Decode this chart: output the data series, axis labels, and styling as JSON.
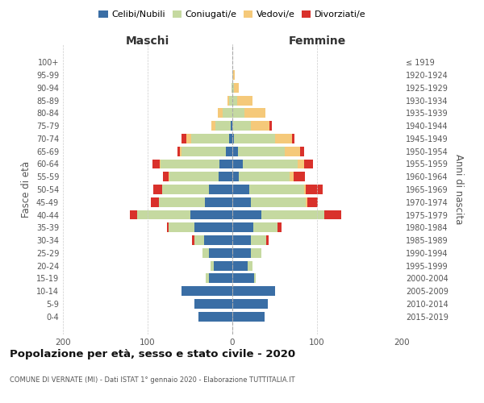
{
  "age_groups": [
    "0-4",
    "5-9",
    "10-14",
    "15-19",
    "20-24",
    "25-29",
    "30-34",
    "35-39",
    "40-44",
    "45-49",
    "50-54",
    "55-59",
    "60-64",
    "65-69",
    "70-74",
    "75-79",
    "80-84",
    "85-89",
    "90-94",
    "95-99",
    "100+"
  ],
  "birth_years": [
    "2015-2019",
    "2010-2014",
    "2005-2009",
    "2000-2004",
    "1995-1999",
    "1990-1994",
    "1985-1989",
    "1980-1984",
    "1975-1979",
    "1970-1974",
    "1965-1969",
    "1960-1964",
    "1955-1959",
    "1950-1954",
    "1945-1949",
    "1940-1944",
    "1935-1939",
    "1930-1934",
    "1925-1929",
    "1920-1924",
    "≤ 1919"
  ],
  "colors": {
    "celibe": "#3a6ea5",
    "coniugato": "#c5d9a0",
    "vedovo": "#f5c97a",
    "divorziato": "#d9312b"
  },
  "maschi": {
    "celibe": [
      40,
      45,
      60,
      28,
      22,
      28,
      33,
      45,
      50,
      32,
      28,
      16,
      15,
      8,
      4,
      2,
      0,
      0,
      0,
      0,
      0
    ],
    "coniugato": [
      0,
      0,
      0,
      3,
      4,
      7,
      12,
      30,
      62,
      55,
      55,
      58,
      70,
      52,
      45,
      18,
      11,
      4,
      1,
      0,
      0
    ],
    "vedovo": [
      0,
      0,
      0,
      0,
      0,
      0,
      0,
      0,
      0,
      0,
      0,
      1,
      1,
      2,
      5,
      5,
      6,
      2,
      0,
      0,
      0
    ],
    "divorziato": [
      0,
      0,
      0,
      0,
      0,
      0,
      3,
      2,
      9,
      9,
      10,
      7,
      8,
      3,
      6,
      0,
      0,
      0,
      0,
      0,
      0
    ]
  },
  "femmine": {
    "nubile": [
      38,
      42,
      50,
      26,
      18,
      22,
      22,
      25,
      34,
      22,
      20,
      8,
      12,
      7,
      2,
      0,
      0,
      0,
      0,
      0,
      0
    ],
    "coniugata": [
      0,
      0,
      0,
      2,
      6,
      12,
      18,
      28,
      75,
      65,
      65,
      60,
      65,
      55,
      48,
      22,
      14,
      6,
      2,
      1,
      0
    ],
    "vedova": [
      0,
      0,
      0,
      0,
      0,
      0,
      0,
      0,
      0,
      2,
      2,
      4,
      8,
      18,
      20,
      22,
      25,
      18,
      6,
      2,
      0
    ],
    "divorziata": [
      0,
      0,
      0,
      0,
      0,
      0,
      3,
      5,
      20,
      12,
      20,
      14,
      10,
      5,
      3,
      3,
      0,
      0,
      0,
      0,
      0
    ]
  },
  "xlim": 200,
  "title": "Popolazione per età, sesso e stato civile - 2020",
  "subtitle": "COMUNE DI VERNATE (MI) - Dati ISTAT 1° gennaio 2020 - Elaborazione TUTTITALIA.IT",
  "ylabel_left": "Fasce di età",
  "ylabel_right": "Anni di nascita",
  "xlabel_maschi": "Maschi",
  "xlabel_femmine": "Femmine",
  "legend_labels": [
    "Celibi/Nubili",
    "Coniugati/e",
    "Vedovi/e",
    "Divorziati/e"
  ]
}
